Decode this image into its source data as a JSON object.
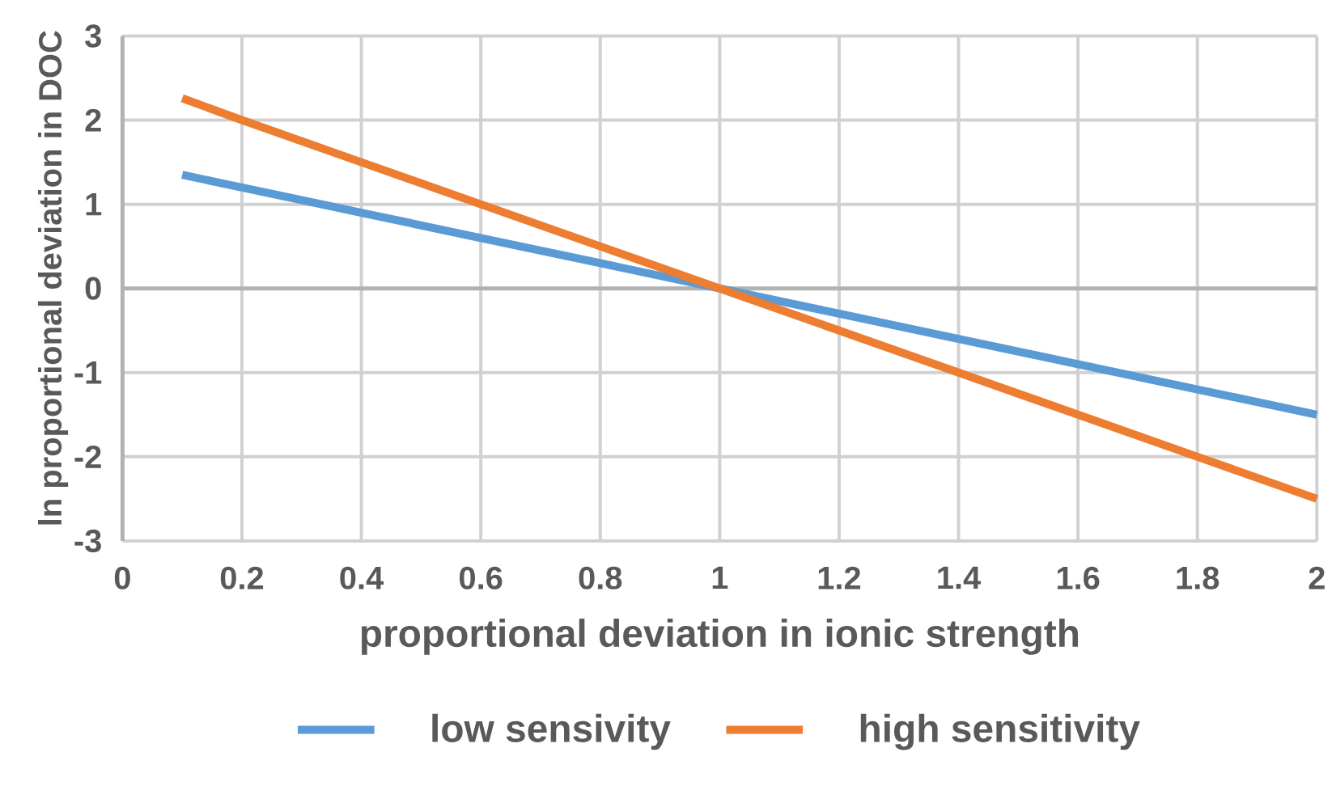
{
  "chart_data": {
    "type": "line",
    "xlabel": "proportional  deviation  in ionic strength",
    "ylabel": "ln proportional  deviation in DOC",
    "x": [
      0.1,
      0.2,
      0.4,
      0.6,
      0.7,
      0.8,
      1,
      1.2,
      1.4,
      1.6,
      1.8,
      2
    ],
    "series": [
      {
        "name": "low sensivity",
        "color": "#5b9bd5",
        "values": [
          1.35,
          1.2,
          0.9,
          0.6,
          0.45,
          0.3,
          0,
          -0.3,
          -0.6,
          -0.9,
          -1.2,
          -1.5
        ]
      },
      {
        "name": "high sensitivity",
        "color": "#ed7d31",
        "values": [
          2.26,
          2.0,
          1.5,
          1.0,
          0.75,
          0.5,
          0,
          -0.5,
          -1.0,
          -1.5,
          -2.0,
          -2.5
        ]
      }
    ],
    "xlim": [
      0,
      2
    ],
    "xticks": [
      0,
      0.2,
      0.4,
      0.6,
      0.8,
      1,
      1.2,
      1.4,
      1.6,
      1.8,
      2
    ],
    "ylim": [
      -3,
      3
    ],
    "yticks": [
      -3,
      -2,
      -1,
      0,
      1,
      2,
      3
    ],
    "grid": true,
    "legend": "bottom",
    "marker": "none",
    "line_style": "solid"
  }
}
